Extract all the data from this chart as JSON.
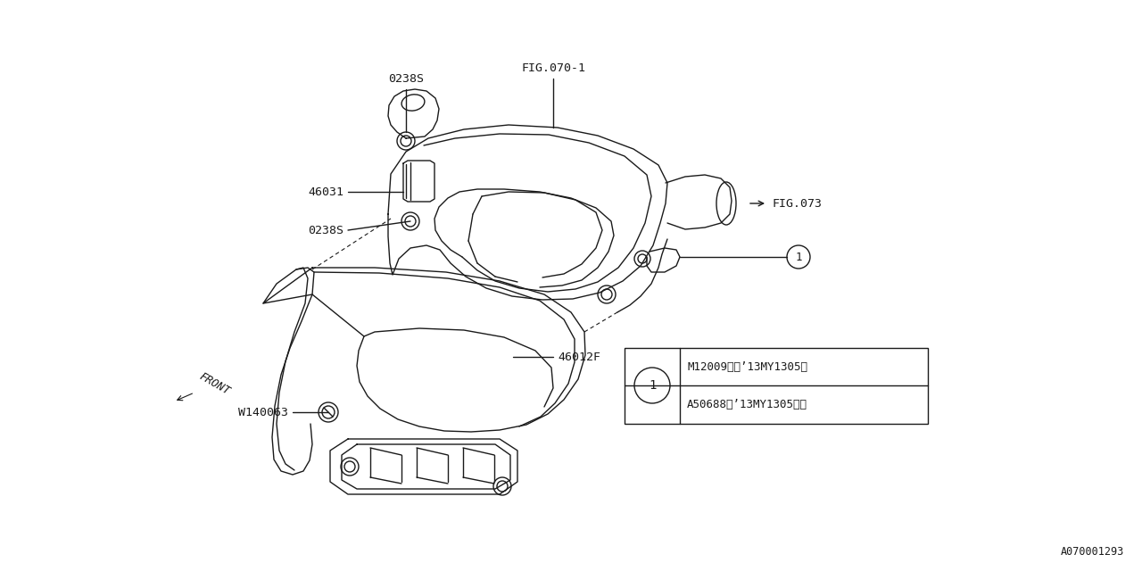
{
  "bg_color": "#ffffff",
  "line_color": "#1a1a1a",
  "fig_size": [
    12.8,
    6.4
  ],
  "dpi": 100,
  "labels": {
    "0238S_top": "0238S",
    "FIG070_1": "FIG.070-1",
    "46031": "46031",
    "0238S_mid": "0238S",
    "FIG073": "FIG.073",
    "46012F": "46012F",
    "FRONT": "FRONT",
    "W140063": "W140063",
    "A070001293": "A070001293"
  },
  "table": {
    "row1": "M12009（－’13MY1305）",
    "row2": "A50688（’13MY1305－）"
  }
}
